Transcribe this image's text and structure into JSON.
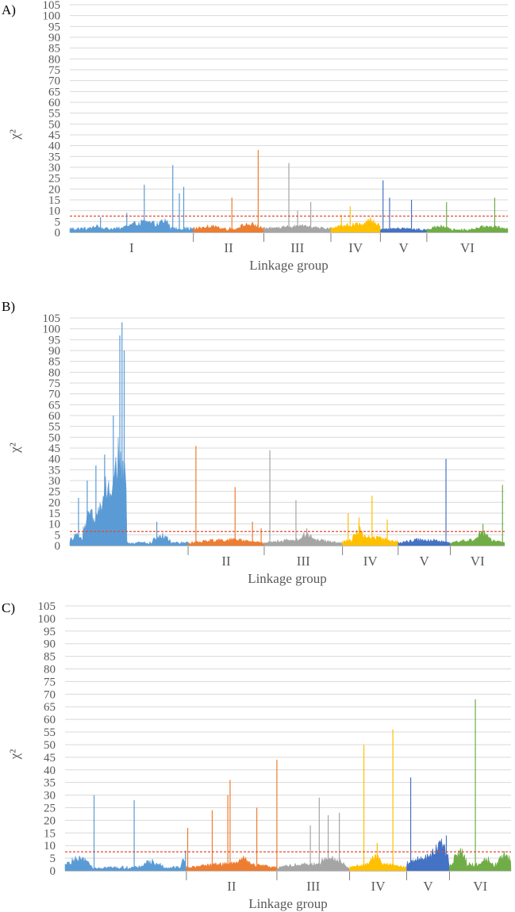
{
  "chart_data": [
    {
      "type": "area",
      "panel_label": "A)",
      "xlabel": "Linkage group",
      "ylabel": "χ²",
      "ylim": [
        0,
        105
      ],
      "yticks": [
        0,
        5,
        10,
        15,
        20,
        25,
        30,
        35,
        40,
        45,
        50,
        55,
        60,
        65,
        70,
        75,
        80,
        85,
        90,
        95,
        100,
        105
      ],
      "grid": true,
      "threshold": 7.5,
      "groups": [
        {
          "name": "I",
          "color": "#5b9bd5",
          "start": 0.0,
          "end": 0.282,
          "base": 2,
          "humps": [
            [
              0.04,
              0.08,
              3
            ],
            [
              0.12,
              0.22,
              5
            ],
            [
              0.2,
              0.23,
              6
            ]
          ],
          "peaks": [
            [
              0.07,
              7
            ],
            [
              0.13,
              9
            ],
            [
              0.17,
              22
            ],
            [
              0.235,
              31
            ],
            [
              0.25,
              18
            ],
            [
              0.26,
              21
            ]
          ]
        },
        {
          "name": "II",
          "color": "#ed7d31",
          "start": 0.282,
          "end": 0.443,
          "base": 2,
          "humps": [
            [
              0.29,
              0.35,
              3
            ],
            [
              0.38,
              0.44,
              4
            ]
          ],
          "peaks": [
            [
              0.37,
              16
            ],
            [
              0.43,
              38
            ]
          ]
        },
        {
          "name": "III",
          "color": "#a5a5a5",
          "start": 0.443,
          "end": 0.596,
          "base": 2,
          "humps": [
            [
              0.45,
              0.59,
              3
            ]
          ],
          "peaks": [
            [
              0.5,
              32
            ],
            [
              0.52,
              10
            ],
            [
              0.55,
              14
            ]
          ]
        },
        {
          "name": "IV",
          "color": "#ffc000",
          "start": 0.596,
          "end": 0.709,
          "base": 2,
          "humps": [
            [
              0.6,
              0.71,
              4
            ],
            [
              0.67,
              0.71,
              6
            ]
          ],
          "peaks": [
            [
              0.62,
              8
            ],
            [
              0.64,
              12
            ]
          ]
        },
        {
          "name": "V",
          "color": "#4472c4",
          "start": 0.709,
          "end": 0.815,
          "base": 1.5,
          "humps": [
            [
              0.71,
              0.8,
              2
            ]
          ],
          "peaks": [
            [
              0.715,
              24
            ],
            [
              0.73,
              16
            ],
            [
              0.78,
              15
            ]
          ]
        },
        {
          "name": "VI",
          "color": "#70ad47",
          "start": 0.815,
          "end": 1.0,
          "base": 1.5,
          "humps": [
            [
              0.82,
              0.87,
              3
            ],
            [
              0.92,
              1.0,
              3
            ]
          ],
          "peaks": [
            [
              0.86,
              14
            ],
            [
              0.97,
              16
            ]
          ]
        }
      ]
    },
    {
      "type": "area",
      "panel_label": "B)",
      "xlabel": "Linkage group",
      "ylabel": "χ²",
      "ylim": [
        0,
        105
      ],
      "yticks": [
        0,
        5,
        10,
        15,
        20,
        25,
        30,
        35,
        40,
        45,
        50,
        55,
        60,
        65,
        70,
        75,
        80,
        85,
        90,
        95,
        100,
        105
      ],
      "grid": true,
      "threshold": 6.5,
      "groups": [
        {
          "name": "",
          "color": "#5b9bd5",
          "start": 0.0,
          "end": 0.272,
          "base": 1.5,
          "humps": [
            [
              0.0,
              0.03,
              5
            ],
            [
              0.03,
              0.07,
              15
            ],
            [
              0.06,
              0.13,
              30
            ],
            [
              0.1,
              0.13,
              45
            ],
            [
              0.19,
              0.23,
              5
            ]
          ],
          "peaks": [
            [
              0.02,
              22
            ],
            [
              0.04,
              30
            ],
            [
              0.06,
              37
            ],
            [
              0.08,
              42
            ],
            [
              0.1,
              60
            ],
            [
              0.115,
              97
            ],
            [
              0.12,
              103
            ],
            [
              0.125,
              90
            ],
            [
              0.2,
              11
            ]
          ]
        },
        {
          "name": "II",
          "color": "#ed7d31",
          "start": 0.272,
          "end": 0.447,
          "base": 1.5,
          "humps": [
            [
              0.28,
              0.44,
              3
            ]
          ],
          "peaks": [
            [
              0.29,
              46
            ],
            [
              0.38,
              27
            ],
            [
              0.42,
              11
            ],
            [
              0.44,
              8
            ]
          ]
        },
        {
          "name": "III",
          "color": "#a5a5a5",
          "start": 0.447,
          "end": 0.627,
          "base": 1.5,
          "humps": [
            [
              0.45,
              0.62,
              3
            ],
            [
              0.53,
              0.56,
              6
            ]
          ],
          "peaks": [
            [
              0.46,
              44
            ],
            [
              0.52,
              21
            ],
            [
              0.545,
              8
            ]
          ]
        },
        {
          "name": "IV",
          "color": "#ffc000",
          "start": 0.627,
          "end": 0.755,
          "base": 2,
          "humps": [
            [
              0.63,
              0.75,
              4
            ],
            [
              0.65,
              0.68,
              8
            ]
          ],
          "peaks": [
            [
              0.64,
              15
            ],
            [
              0.665,
              13
            ],
            [
              0.695,
              23
            ],
            [
              0.73,
              12
            ]
          ]
        },
        {
          "name": "V",
          "color": "#4472c4",
          "start": 0.755,
          "end": 0.875,
          "base": 1.5,
          "humps": [
            [
              0.76,
              0.87,
              3
            ]
          ],
          "peaks": [
            [
              0.865,
              40
            ]
          ]
        },
        {
          "name": "VI",
          "color": "#70ad47",
          "start": 0.875,
          "end": 1.0,
          "base": 1.5,
          "humps": [
            [
              0.88,
              1.0,
              3
            ],
            [
              0.93,
              0.97,
              6
            ]
          ],
          "peaks": [
            [
              0.95,
              10
            ],
            [
              0.995,
              28
            ]
          ]
        }
      ]
    },
    {
      "type": "area",
      "panel_label": "C)",
      "xlabel": "Linkage group",
      "ylabel": "χ²",
      "ylim": [
        0,
        105
      ],
      "yticks": [
        0,
        5,
        10,
        15,
        20,
        25,
        30,
        35,
        40,
        45,
        50,
        55,
        60,
        65,
        70,
        75,
        80,
        85,
        90,
        95,
        100,
        105
      ],
      "grid": true,
      "threshold": 7.5,
      "groups": [
        {
          "name": "",
          "color": "#5b9bd5",
          "start": 0.0,
          "end": 0.272,
          "base": 1.5,
          "humps": [
            [
              0.0,
              0.06,
              5
            ],
            [
              0.17,
              0.22,
              4
            ],
            [
              0.26,
              0.272,
              5
            ]
          ],
          "peaks": [
            [
              0.065,
              30
            ],
            [
              0.155,
              28
            ],
            [
              0.27,
              8
            ]
          ]
        },
        {
          "name": "II",
          "color": "#ed7d31",
          "start": 0.272,
          "end": 0.475,
          "base": 1.5,
          "humps": [
            [
              0.28,
              0.47,
              3
            ],
            [
              0.38,
              0.42,
              5
            ]
          ],
          "peaks": [
            [
              0.275,
              17
            ],
            [
              0.33,
              24
            ],
            [
              0.365,
              30
            ],
            [
              0.37,
              36
            ],
            [
              0.43,
              25
            ],
            [
              0.475,
              44
            ]
          ]
        },
        {
          "name": "III",
          "color": "#a5a5a5",
          "start": 0.475,
          "end": 0.638,
          "base": 1.5,
          "humps": [
            [
              0.48,
              0.63,
              3
            ],
            [
              0.56,
              0.63,
              5
            ]
          ],
          "peaks": [
            [
              0.55,
              18
            ],
            [
              0.57,
              29
            ],
            [
              0.59,
              22
            ],
            [
              0.615,
              23
            ]
          ]
        },
        {
          "name": "IV",
          "color": "#ffc000",
          "start": 0.638,
          "end": 0.766,
          "base": 1.5,
          "humps": [
            [
              0.64,
              0.76,
              3
            ],
            [
              0.68,
              0.71,
              6
            ]
          ],
          "peaks": [
            [
              0.67,
              50
            ],
            [
              0.7,
              11
            ],
            [
              0.735,
              56
            ]
          ]
        },
        {
          "name": "V",
          "color": "#4472c4",
          "start": 0.766,
          "end": 0.862,
          "base": 3,
          "humps": [
            [
              0.77,
              0.86,
              6
            ],
            [
              0.82,
              0.86,
              11
            ]
          ],
          "peaks": [
            [
              0.775,
              37
            ],
            [
              0.855,
              14
            ]
          ]
        },
        {
          "name": "VI",
          "color": "#70ad47",
          "start": 0.862,
          "end": 1.0,
          "base": 3,
          "humps": [
            [
              0.87,
              0.9,
              8
            ],
            [
              0.93,
              0.96,
              5
            ],
            [
              0.97,
              1.0,
              7
            ]
          ],
          "peaks": [
            [
              0.92,
              68
            ]
          ]
        }
      ]
    }
  ]
}
